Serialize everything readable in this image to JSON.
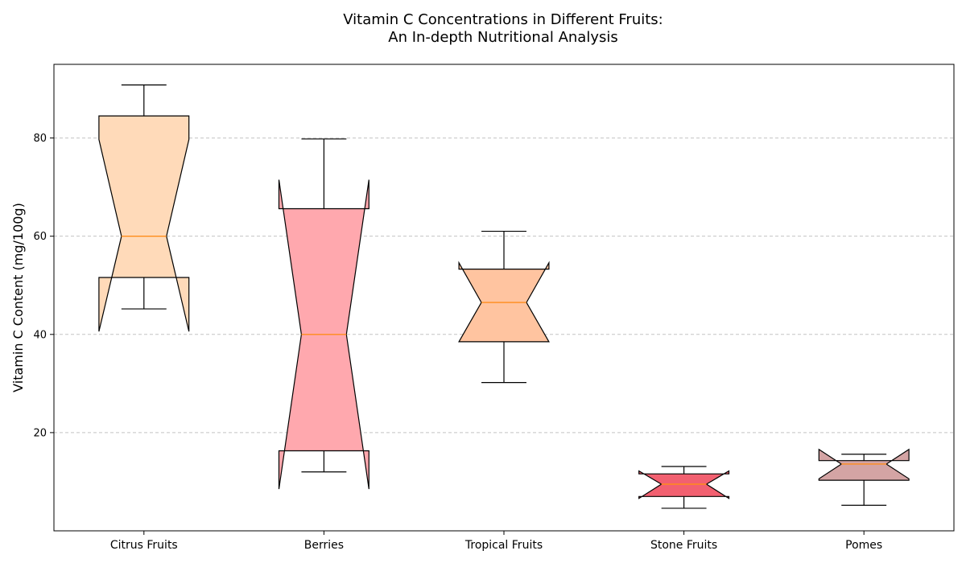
{
  "chart_data": {
    "type": "box",
    "title_lines": [
      "Vitamin C Concentrations in Different Fruits:",
      "An In-depth Nutritional Analysis"
    ],
    "xlabel": "",
    "ylabel": "Vitamin C Content (mg/100g)",
    "ylim": [
      0,
      95
    ],
    "yticks": [
      20,
      40,
      60,
      80
    ],
    "grid": "y-dashed",
    "notched": true,
    "categories": [
      "Citrus Fruits",
      "Berries",
      "Tropical Fruits",
      "Stone Fruits",
      "Pomes"
    ],
    "boxes": [
      {
        "name": "Citrus Fruits",
        "whisker_low": 45.2,
        "q1": 51.6,
        "median": 60.0,
        "q3": 84.5,
        "whisker_high": 90.8,
        "notch_low": 40.6,
        "notch_high": 79.7,
        "color": "#FFDAB9"
      },
      {
        "name": "Berries",
        "whisker_low": 12.0,
        "q1": 16.3,
        "median": 40.0,
        "q3": 65.6,
        "whisker_high": 79.8,
        "notch_low": 8.5,
        "notch_high": 71.5,
        "color": "#FFA8AE"
      },
      {
        "name": "Tropical Fruits",
        "whisker_low": 30.2,
        "q1": 38.5,
        "median": 46.5,
        "q3": 53.3,
        "whisker_high": 61.0,
        "notch_low": 38.5,
        "notch_high": 54.6,
        "color": "#FFC4A0"
      },
      {
        "name": "Stone Fruits",
        "whisker_low": 4.6,
        "q1": 7.0,
        "median": 9.5,
        "q3": 11.6,
        "whisker_high": 13.1,
        "notch_low": 6.6,
        "notch_high": 12.2,
        "color": "#F26070"
      },
      {
        "name": "Pomes",
        "whisker_low": 5.2,
        "q1": 10.3,
        "median": 13.6,
        "q3": 14.3,
        "whisker_high": 15.6,
        "notch_low": 10.6,
        "notch_high": 16.6,
        "color": "#D4A4A4"
      }
    ],
    "median_color": "#FF8C1A"
  }
}
